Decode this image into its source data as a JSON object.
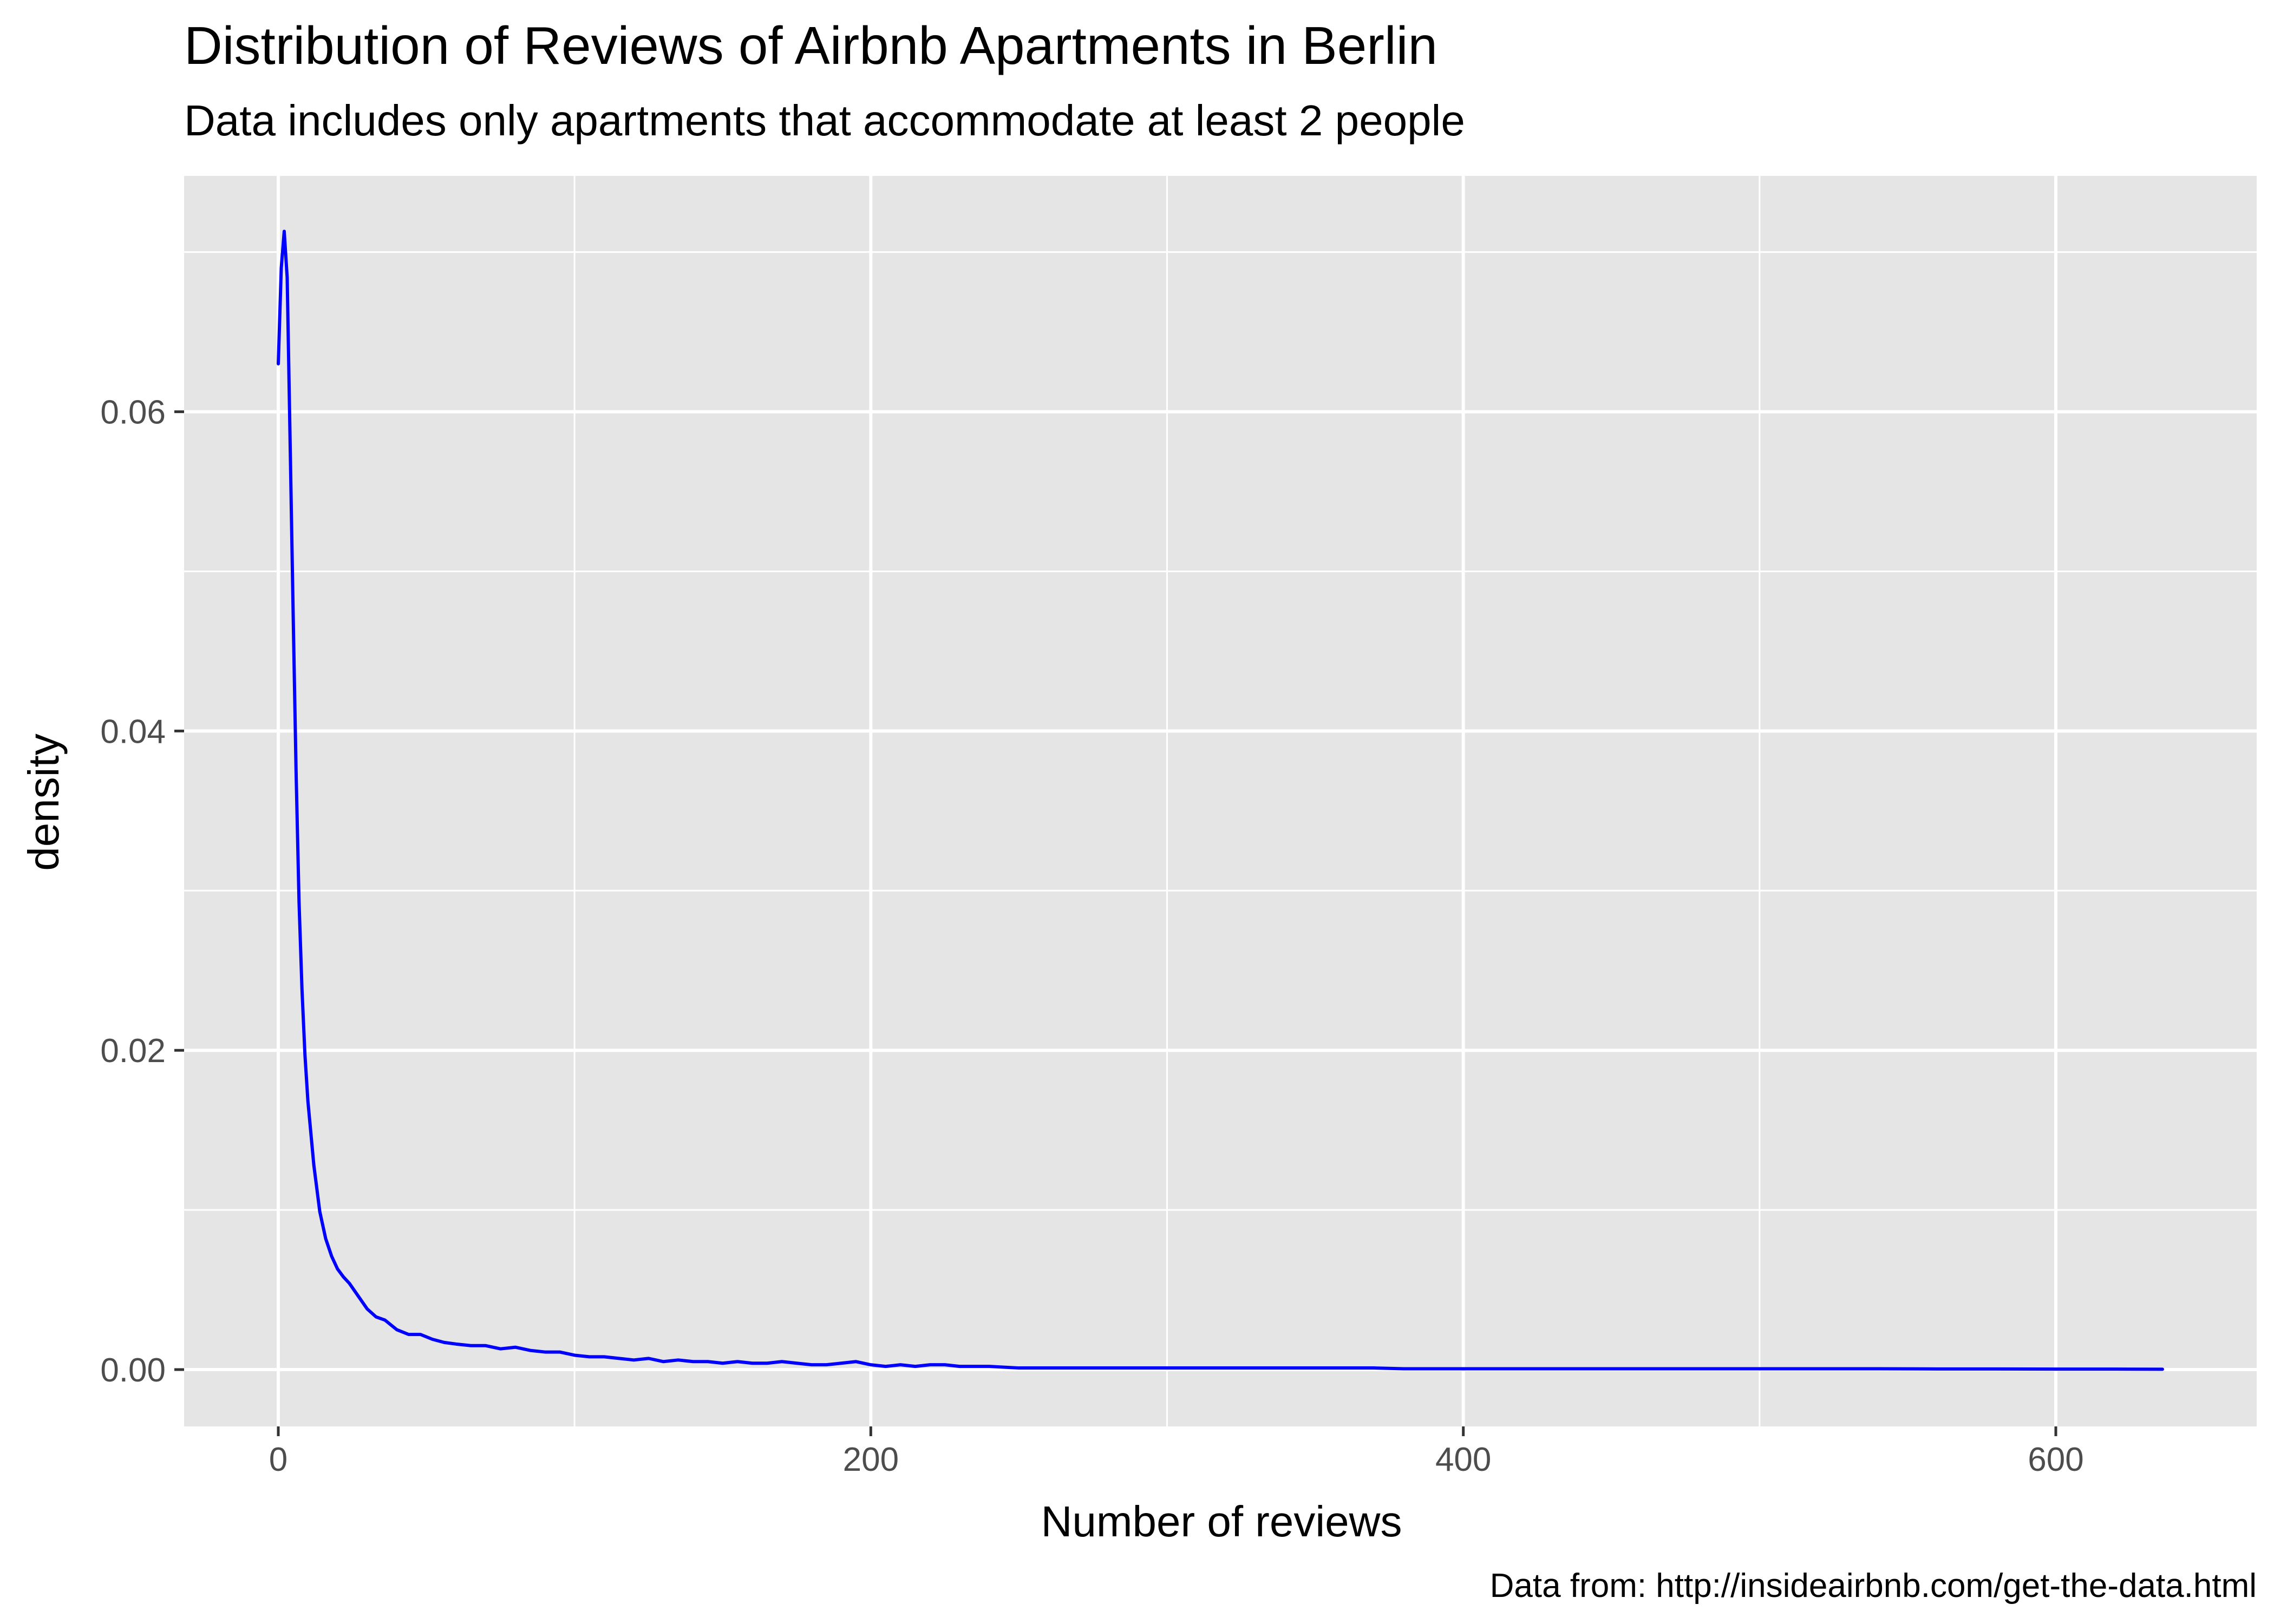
{
  "chart_data": {
    "type": "line",
    "title": "Distribution of Reviews of Airbnb Apartments in Berlin",
    "subtitle": "Data includes only apartments that accommodate at least 2 people",
    "xlabel": "Number of reviews",
    "ylabel": "density",
    "caption": "Data from: http://insideairbnb.com/get-the-data.html",
    "xlim": [
      -31.8,
      667.8
    ],
    "ylim": [
      -0.00356,
      0.07477
    ],
    "x_ticks": [
      0,
      200,
      400,
      600
    ],
    "x_tick_labels": [
      "0",
      "200",
      "400",
      "600"
    ],
    "x_minor_ticks": [
      100,
      300,
      500
    ],
    "y_ticks": [
      0,
      0.02,
      0.04,
      0.06
    ],
    "y_tick_labels": [
      "0.00",
      "0.02",
      "0.04",
      "0.06"
    ],
    "y_minor_ticks": [
      0.01,
      0.03,
      0.05,
      0.07
    ],
    "grid": true,
    "legend": "none",
    "colors": {
      "line": "#0000ff",
      "panel_background": "#e5e5e5",
      "grid": "#ffffff",
      "tick_text": "#4d4d4d",
      "tick_mark": "#333333"
    },
    "series": [
      {
        "x": [
          0,
          1,
          2,
          3,
          4,
          5,
          6,
          7,
          8,
          9,
          10,
          12,
          14,
          16,
          18,
          20,
          22,
          24,
          27,
          30,
          33,
          36,
          40,
          44,
          48,
          52,
          56,
          60,
          65,
          70,
          75,
          80,
          85,
          90,
          95,
          100,
          105,
          110,
          115,
          120,
          125,
          130,
          135,
          140,
          145,
          150,
          155,
          160,
          165,
          170,
          175,
          180,
          185,
          190,
          195,
          200,
          205,
          210,
          215,
          220,
          225,
          230,
          240,
          250,
          260,
          270,
          280,
          290,
          300,
          310,
          320,
          330,
          340,
          350,
          360,
          370,
          380,
          400,
          420,
          440,
          460,
          480,
          500,
          520,
          540,
          560,
          580,
          600,
          620,
          636
        ],
        "y": [
          0.063,
          0.069,
          0.0713,
          0.0684,
          0.058,
          0.0475,
          0.0375,
          0.0293,
          0.0238,
          0.0197,
          0.0168,
          0.0128,
          0.0099,
          0.0082,
          0.0071,
          0.0063,
          0.0058,
          0.0054,
          0.0046,
          0.0038,
          0.0033,
          0.0031,
          0.0025,
          0.0022,
          0.0022,
          0.0019,
          0.0017,
          0.0016,
          0.0015,
          0.0015,
          0.0013,
          0.0014,
          0.0012,
          0.0011,
          0.0011,
          0.0009,
          0.0008,
          0.0008,
          0.0007,
          0.0006,
          0.0007,
          0.0005,
          0.0006,
          0.0005,
          0.0005,
          0.0004,
          0.0005,
          0.0004,
          0.0004,
          0.0005,
          0.0004,
          0.0003,
          0.0003,
          0.0004,
          0.0005,
          0.0003,
          0.0002,
          0.0003,
          0.0002,
          0.0003,
          0.0003,
          0.0002,
          0.0002,
          0.0001,
          0.0001,
          0.0001,
          0.0001,
          0.0001,
          0.0001,
          0.0001,
          0.0001,
          0.0001,
          0.0001,
          0.0001,
          0.0001,
          0.0001,
          5e-05,
          5e-05,
          5e-05,
          5e-05,
          5e-05,
          5e-05,
          5e-05,
          5e-05,
          5e-05,
          4e-05,
          4e-05,
          3e-05,
          3e-05,
          2e-05
        ]
      }
    ]
  }
}
